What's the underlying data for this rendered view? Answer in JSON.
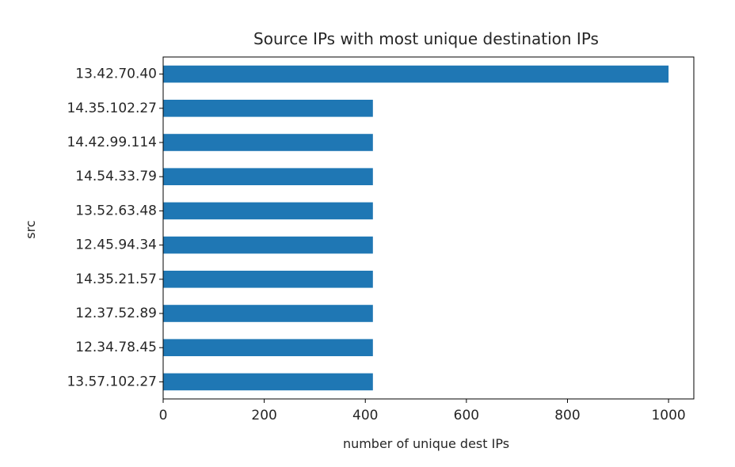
{
  "chart_data": {
    "type": "bar",
    "orientation": "horizontal",
    "title": "Source IPs with most unique destination IPs",
    "xlabel": "number of unique dest IPs",
    "ylabel": "src",
    "categories": [
      "13.42.70.40",
      "14.35.102.27",
      "14.42.99.114",
      "14.54.33.79",
      "13.52.63.48",
      "12.45.94.34",
      "14.35.21.57",
      "12.37.52.89",
      "12.34.78.45",
      "13.57.102.27"
    ],
    "values": [
      1000,
      415,
      415,
      415,
      415,
      415,
      415,
      415,
      415,
      415
    ],
    "xlim": [
      0,
      1050
    ],
    "xticks": [
      0,
      200,
      400,
      600,
      800,
      1000
    ],
    "xtick_labels": [
      "0",
      "200",
      "400",
      "600",
      "800",
      "1000"
    ],
    "bar_color": "#1f77b4",
    "grid": false,
    "legend": "none"
  }
}
